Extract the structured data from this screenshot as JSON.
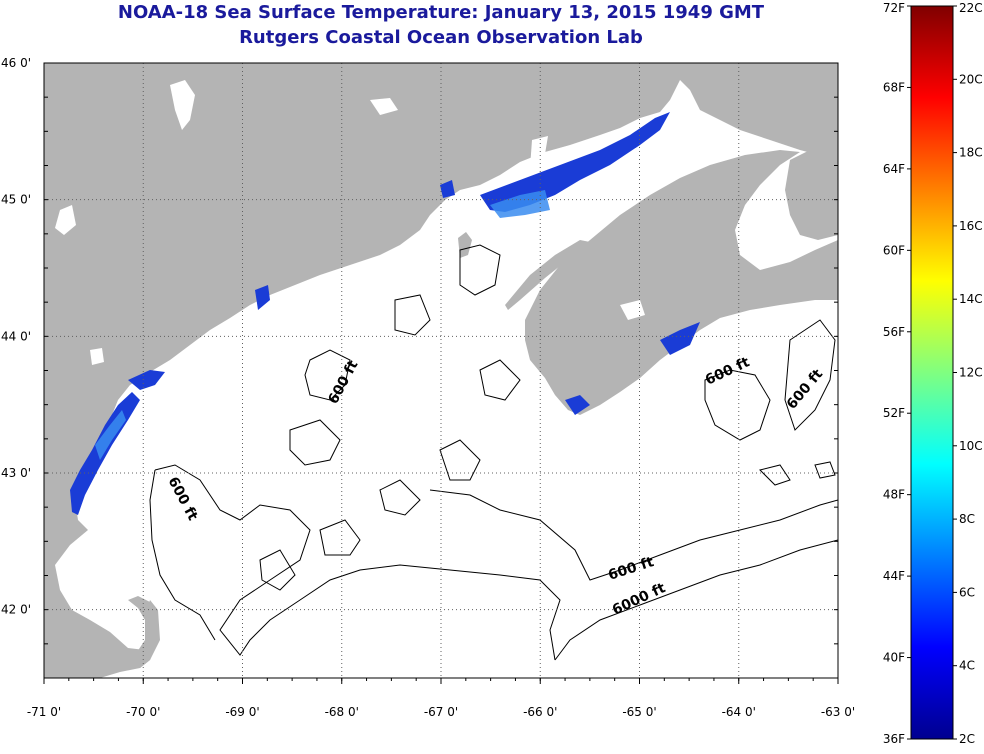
{
  "title": {
    "line1": "NOAA-18 Sea Surface Temperature:  January 13, 2015 1949 GMT",
    "line2": "Rutgers Coastal Ocean Observation Lab"
  },
  "axes": {
    "lon_labels": [
      "-71 0'",
      "-70 0'",
      "-69 0'",
      "-68 0'",
      "-67 0'",
      "-66 0'",
      "-65 0'",
      "-64 0'",
      "-63 0'"
    ],
    "lon_values": [
      -71,
      -70,
      -69,
      -68,
      -67,
      -66,
      -65,
      -64,
      -63
    ],
    "lat_labels": [
      "46 0'",
      "45 0'",
      "44 0'",
      "43 0'",
      "42 0'"
    ],
    "lat_values": [
      46,
      45,
      44,
      43,
      42
    ],
    "lon_range": [
      -71,
      -63
    ],
    "lat_range": [
      41.5,
      46
    ],
    "grid": "dotted"
  },
  "contour_labels": [
    "600 ft",
    "600 ft",
    "600 ft",
    "600 ft",
    "600 ft",
    "6000 ft"
  ],
  "colorbar": {
    "f_labels": [
      "72F",
      "68F",
      "64F",
      "60F",
      "56F",
      "52F",
      "48F",
      "44F",
      "40F",
      "36F"
    ],
    "c_labels": [
      "22C",
      "20C",
      "18C",
      "16C",
      "14C",
      "12C",
      "10C",
      "8C",
      "6C",
      "4C",
      "2C"
    ],
    "range_c": [
      2,
      22
    ],
    "colors": [
      "#00008f",
      "#0000ff",
      "#0080ff",
      "#00ffff",
      "#80ff80",
      "#ffff00",
      "#ff8000",
      "#ff0000",
      "#800000"
    ]
  },
  "colors": {
    "land": "#b4b4b4",
    "ocean": "#ffffff",
    "sst_cold": "#1a3cd6",
    "sst_light": "#3a8cf0"
  }
}
